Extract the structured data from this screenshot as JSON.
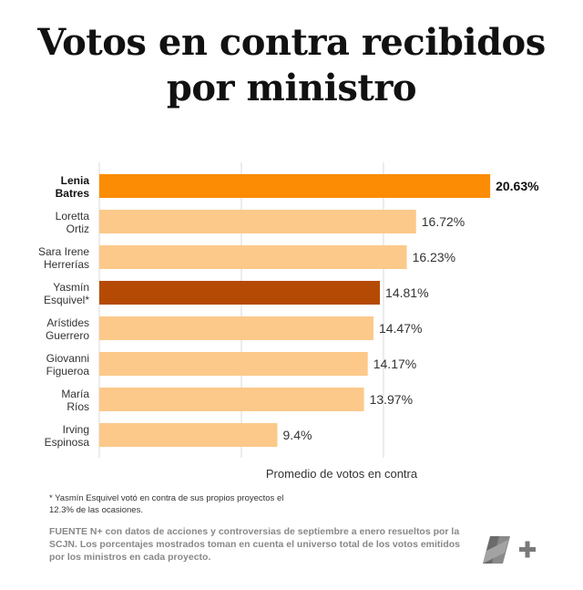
{
  "title_lines": [
    "Votos en contra recibidos",
    "por ministro"
  ],
  "chart_data": {
    "type": "bar",
    "orientation": "horizontal",
    "title": "Votos en contra recibidos por ministro",
    "categories": [
      [
        "Lenia",
        "Batres"
      ],
      [
        "Loretta",
        "Ortiz"
      ],
      [
        "Sara Irene",
        "Herrerías"
      ],
      [
        "Yasmín",
        "Esquivel*"
      ],
      [
        "Arístides",
        "Guerrero"
      ],
      [
        "Giovanni",
        "Figueroa"
      ],
      [
        "María",
        "Ríos"
      ],
      [
        "Irving",
        "Espinosa"
      ]
    ],
    "values": [
      20.63,
      16.72,
      16.23,
      14.81,
      14.47,
      14.17,
      13.97,
      9.4
    ],
    "value_labels": [
      "20.63%",
      "16.72%",
      "16.23%",
      "14.81%",
      "14.47%",
      "14.17%",
      "13.97%",
      "9.4%"
    ],
    "highlight": [
      true,
      false,
      false,
      false,
      false,
      false,
      false,
      false
    ],
    "xlabel": "Promedio de votos en contra",
    "xlim": [
      0,
      22
    ],
    "gridlines": [
      0,
      7.5,
      15
    ],
    "colors": {
      "default": "#fcc98a",
      "top": "#fb8c04",
      "esquivel": "#b54a05",
      "grid": "#d9d9d9"
    },
    "bar_colors": [
      "#fb8c04",
      "#fcc98a",
      "#fcc98a",
      "#b54a05",
      "#fcc98a",
      "#fcc98a",
      "#fcc98a",
      "#fcc98a"
    ]
  },
  "footnote": "* Yasmín Esquivel votó en contra de sus propios proyectos el 12.3% de las ocasiones.",
  "source": "FUENTE N+ con datos de acciones y controversias de septiembre a enero resueltos por la SCJN. Los porcentajes mostrados toman en cuenta el universo total de los votos emitidos por los ministros en cada proyecto.",
  "logo_text": "N+"
}
